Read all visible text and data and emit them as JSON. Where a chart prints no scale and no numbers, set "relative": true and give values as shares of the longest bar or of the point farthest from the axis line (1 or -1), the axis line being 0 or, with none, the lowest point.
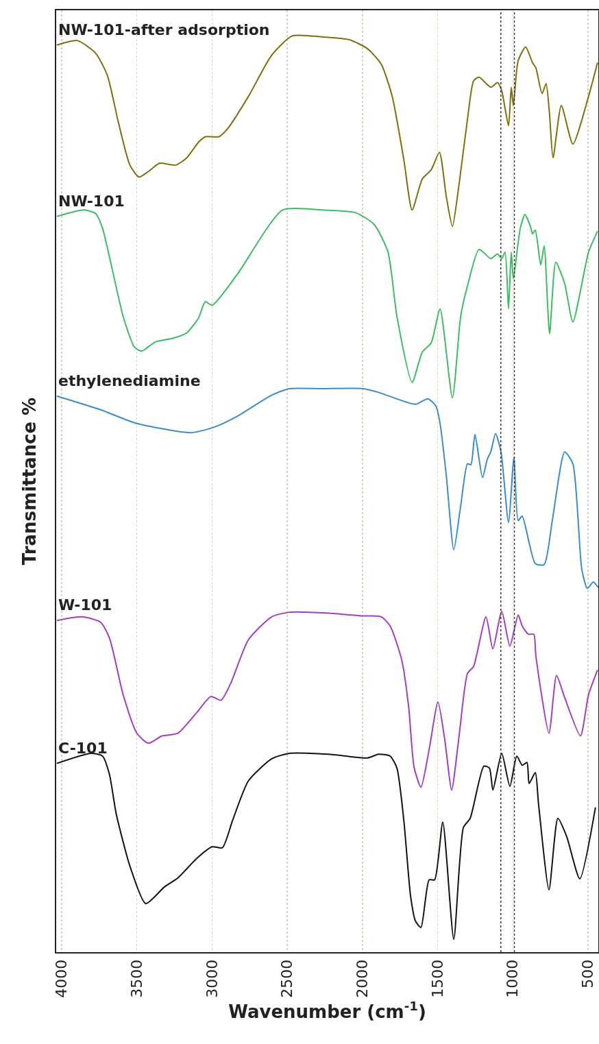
{
  "chart_data": {
    "type": "line",
    "relative": true,
    "xlabel": "Wavenumber (cm$^{-1}$)",
    "ylabel": "Transmittance %",
    "xlim": [
      4036,
      432
    ],
    "xticks": [
      4000,
      3500,
      3000,
      2500,
      2000,
      1500,
      1000,
      500
    ],
    "grid": "x",
    "ref_lines": [
      {
        "axis": "x",
        "value": 1080,
        "color": "#333333",
        "line_style": "dotted"
      },
      {
        "axis": "x",
        "value": 990,
        "color": "#333333",
        "line_style": "dotted"
      }
    ],
    "series": [
      {
        "name": "NW-101-after adsorption",
        "color": "#7d6e0e",
        "x": [
          4032,
          3896,
          3773,
          3696,
          3623,
          3546,
          3486,
          3423,
          3350,
          3241,
          3168,
          3090,
          3045,
          2954,
          2895,
          2758,
          2603,
          2467,
          2271,
          2089,
          1966,
          1875,
          1802,
          1725,
          1670,
          1602,
          1543,
          1488,
          1443,
          1402,
          1361,
          1302,
          1261,
          1225,
          1147,
          1102,
          1074,
          1029,
          1011,
          997,
          965,
          915,
          870,
          847,
          806,
          779,
          756,
          733,
          678,
          601,
          497,
          437
        ],
        "values": [
          0.99,
          0.995,
          0.981,
          0.957,
          0.906,
          0.859,
          0.846,
          0.852,
          0.861,
          0.859,
          0.867,
          0.884,
          0.89,
          0.89,
          0.899,
          0.934,
          0.979,
          1.0,
          0.999,
          0.996,
          0.986,
          0.969,
          0.934,
          0.865,
          0.81,
          0.844,
          0.854,
          0.873,
          0.825,
          0.792,
          0.834,
          0.909,
          0.951,
          0.955,
          0.944,
          0.949,
          0.94,
          0.902,
          0.944,
          0.924,
          0.973,
          0.988,
          0.971,
          0.965,
          0.937,
          0.948,
          0.914,
          0.867,
          0.924,
          0.882,
          0.934,
          0.971
        ]
      },
      {
        "name": "NW-101",
        "color": "#3dbb62",
        "x": [
          4032,
          3850,
          3773,
          3728,
          3591,
          3514,
          3468,
          3377,
          3259,
          3168,
          3090,
          3045,
          2999,
          2831,
          2531,
          2271,
          2044,
          1921,
          1830,
          1771,
          1670,
          1602,
          1543,
          1484,
          1402,
          1347,
          1302,
          1225,
          1147,
          1102,
          1074,
          1052,
          1029,
          1011,
          997,
          951,
          920,
          883,
          870,
          851,
          815,
          792,
          756,
          715,
          656,
          601,
          497,
          437
        ],
        "values": [
          0.803,
          0.81,
          0.806,
          0.79,
          0.694,
          0.66,
          0.656,
          0.666,
          0.67,
          0.676,
          0.692,
          0.71,
          0.706,
          0.74,
          0.81,
          0.81,
          0.807,
          0.794,
          0.764,
          0.694,
          0.622,
          0.655,
          0.665,
          0.702,
          0.605,
          0.694,
          0.727,
          0.767,
          0.757,
          0.762,
          0.757,
          0.764,
          0.702,
          0.764,
          0.735,
          0.79,
          0.805,
          0.792,
          0.784,
          0.788,
          0.75,
          0.771,
          0.675,
          0.753,
          0.73,
          0.688,
          0.764,
          0.787
        ]
      },
      {
        "name": "ethylenediamine",
        "color": "#3b8cc6",
        "x": [
          4032,
          3741,
          3500,
          3136,
          2986,
          2831,
          2603,
          2485,
          2271,
          1998,
          1893,
          1648,
          1566,
          1511,
          1484,
          1443,
          1393,
          1347,
          1302,
          1279,
          1252,
          1202,
          1170,
          1147,
          1115,
          1079,
          1029,
          993,
          965,
          938,
          851,
          792,
          738,
          656,
          601,
          542,
          505,
          465,
          433
        ],
        "values": [
          0.607,
          0.592,
          0.577,
          0.567,
          0.573,
          0.585,
          0.608,
          0.615,
          0.615,
          0.615,
          0.611,
          0.598,
          0.604,
          0.596,
          0.577,
          0.521,
          0.439,
          0.487,
          0.533,
          0.532,
          0.565,
          0.518,
          0.538,
          0.546,
          0.566,
          0.546,
          0.469,
          0.54,
          0.471,
          0.476,
          0.424,
          0.423,
          0.471,
          0.546,
          0.533,
          0.418,
          0.397,
          0.404,
          0.398
        ]
      },
      {
        "name": "W-101",
        "color": "#a23dbf",
        "x": [
          4032,
          3864,
          3741,
          3682,
          3591,
          3500,
          3423,
          3332,
          3227,
          3104,
          3008,
          2940,
          2877,
          2758,
          2603,
          2485,
          2226,
          1998,
          1875,
          1816,
          1739,
          1693,
          1657,
          1611,
          1557,
          1498,
          1452,
          1407,
          1361,
          1302,
          1261,
          1179,
          1133,
          1074,
          1020,
          965,
          938,
          897,
          861,
          847,
          760,
          710,
          656,
          551,
          497,
          437
        ],
        "values": [
          0.362,
          0.366,
          0.36,
          0.343,
          0.281,
          0.239,
          0.228,
          0.236,
          0.239,
          0.261,
          0.279,
          0.275,
          0.293,
          0.341,
          0.366,
          0.371,
          0.37,
          0.367,
          0.366,
          0.356,
          0.319,
          0.268,
          0.202,
          0.18,
          0.221,
          0.273,
          0.231,
          0.177,
          0.231,
          0.304,
          0.312,
          0.366,
          0.331,
          0.372,
          0.334,
          0.368,
          0.356,
          0.347,
          0.347,
          0.323,
          0.239,
          0.302,
          0.278,
          0.236,
          0.281,
          0.308
        ]
      },
      {
        "name": "C-101",
        "color": "#111111",
        "x": [
          4032,
          3805,
          3728,
          3682,
          3637,
          3546,
          3441,
          3318,
          3227,
          3104,
          2999,
          2931,
          2863,
          2758,
          2603,
          2485,
          2226,
          1966,
          1893,
          1816,
          1771,
          1725,
          1680,
          1648,
          1611,
          1557,
          1520,
          1466,
          1393,
          1329,
          1284,
          1193,
          1156,
          1133,
          1074,
          1020,
          974,
          938,
          906,
          892,
          851,
          829,
          760,
          701,
          642,
          555,
          451
        ],
        "values": [
          0.206,
          0.217,
          0.214,
          0.194,
          0.151,
          0.094,
          0.053,
          0.071,
          0.081,
          0.102,
          0.115,
          0.114,
          0.144,
          0.187,
          0.211,
          0.217,
          0.216,
          0.212,
          0.216,
          0.214,
          0.201,
          0.144,
          0.061,
          0.034,
          0.027,
          0.079,
          0.079,
          0.142,
          0.014,
          0.136,
          0.146,
          0.203,
          0.201,
          0.177,
          0.217,
          0.181,
          0.214,
          0.204,
          0.207,
          0.184,
          0.196,
          0.161,
          0.068,
          0.146,
          0.126,
          0.08,
          0.158
        ]
      }
    ]
  }
}
